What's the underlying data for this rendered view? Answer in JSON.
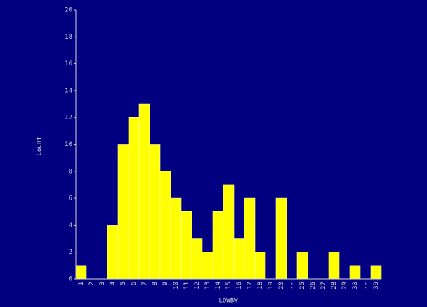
{
  "chart_data": {
    "type": "bar",
    "x_label": "LOWBW",
    "y_label": "Count",
    "categories": [
      "1",
      "2",
      "3",
      "4",
      "5",
      "6",
      "7",
      "8",
      "9",
      "10",
      "11",
      "12",
      "13",
      "14",
      "15",
      "16",
      "17",
      "18",
      "19",
      "20",
      "--",
      "25",
      "26",
      "27",
      "28",
      "29",
      "30",
      "--",
      "39"
    ],
    "values": [
      1,
      0,
      0,
      4,
      10,
      12,
      13,
      10,
      8,
      6,
      5,
      3,
      2,
      5,
      7,
      3,
      6,
      2,
      0,
      6,
      0,
      2,
      0,
      0,
      2,
      0,
      1,
      0,
      1
    ],
    "color": "#ffff00",
    "ylim": [
      0,
      20
    ],
    "yticks": [
      0,
      2,
      4,
      6,
      8,
      10,
      12,
      14,
      16,
      18,
      20
    ]
  }
}
